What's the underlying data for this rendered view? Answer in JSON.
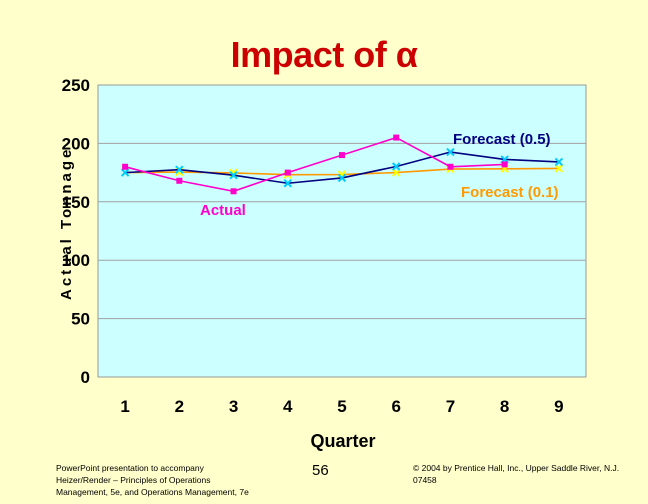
{
  "slide": {
    "title": "Impact of α",
    "footer_left": "PowerPoint presentation to accompany Heizer/Render – Principles of Operations Management, 5e, and Operations Management, 7e",
    "page_number": "56",
    "footer_right": "© 2004 by Prentice Hall, Inc., Upper Saddle River, N.J. 07458"
  },
  "colors": {
    "plot_bg": "#ccffff",
    "actual": "#ff00cc",
    "forecast_05": "#000080",
    "forecast_01": "#ff9900",
    "title": "#cc0000"
  },
  "chart_data": {
    "type": "line",
    "title": "Impact of α",
    "xlabel": "Quarter",
    "ylabel": "Actual Tonnage",
    "categories": [
      "1",
      "2",
      "3",
      "4",
      "5",
      "6",
      "7",
      "8",
      "9"
    ],
    "ylim": [
      0,
      250
    ],
    "yticks": [
      0,
      50,
      100,
      150,
      200,
      250
    ],
    "grid": true,
    "series": [
      {
        "name": "Actual",
        "values": [
          180,
          168,
          159,
          175,
          190,
          205,
          180,
          182,
          null
        ]
      },
      {
        "name": "Forecast (0.5)",
        "values": [
          175,
          177.5,
          172.75,
          165.88,
          170.44,
          180.22,
          192.61,
          186.3,
          184.15
        ]
      },
      {
        "name": "Forecast (0.1)",
        "values": [
          175,
          175.5,
          174.75,
          173.18,
          173.36,
          175.02,
          178.02,
          178.22,
          178.59
        ]
      }
    ],
    "annotations": [
      "Actual",
      "Forecast (0.5)",
      "Forecast (0.1)"
    ]
  }
}
